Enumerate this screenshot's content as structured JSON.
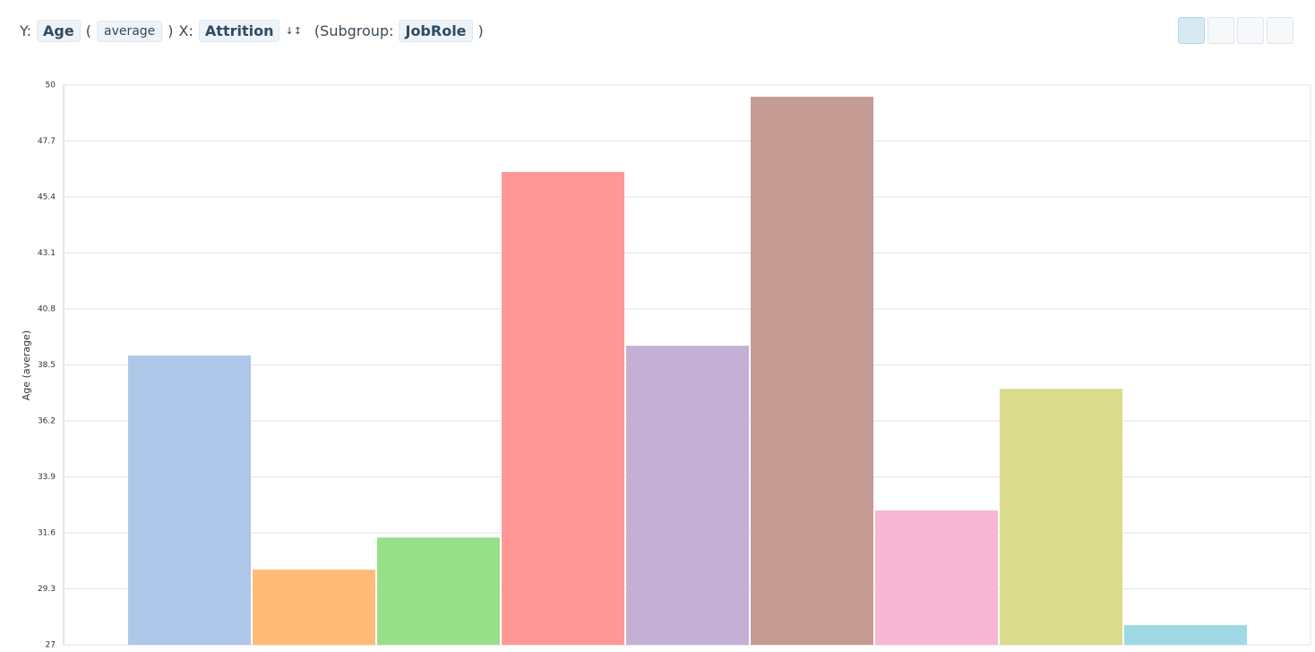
{
  "header": {
    "y_prefix": "Y:",
    "y_field": "Age",
    "open_paren": "(",
    "aggregate": "average",
    "close_paren": ")",
    "x_prefix": "X:",
    "x_field": "Attrition",
    "subgroup_prefix": "(Subgroup:",
    "subgroup_field": "JobRole",
    "subgroup_close": ")"
  },
  "chart_data": {
    "type": "bar",
    "y_label": "Age (average)",
    "categories": [
      null,
      null,
      null,
      null,
      null,
      null,
      null,
      null,
      null
    ],
    "values": [
      38.89,
      30.09,
      31.41,
      46.43,
      39.29,
      49.52,
      32.52,
      37.52,
      27.81
    ],
    "colors": [
      "#aec7e8",
      "#ffbb78",
      "#98df8a",
      "#ff9896",
      "#c5b0d5",
      "#c49c94",
      "#f7b6d2",
      "#dbdb8d",
      "#9edae5"
    ],
    "ylim": [
      27,
      50
    ],
    "yticks": [
      27,
      29.3,
      31.6,
      33.9,
      36.2,
      38.5,
      40.8,
      43.1,
      45.4,
      47.7,
      50
    ],
    "grid": true
  }
}
